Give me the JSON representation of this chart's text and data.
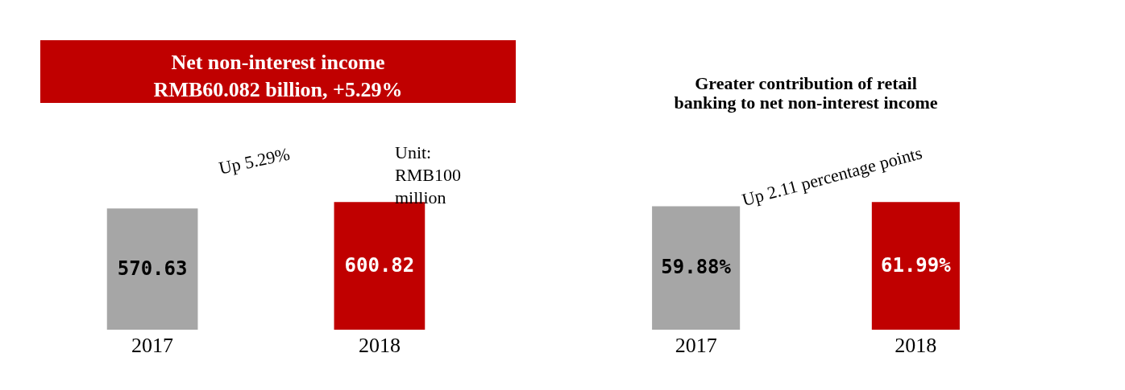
{
  "chart_data": [
    {
      "type": "bar",
      "title": "Net non-interest income\nRMB60.082 billion, +5.29%",
      "categories": [
        "2017",
        "2018"
      ],
      "values": [
        570.63,
        600.82
      ],
      "colors": [
        "#a6a6a6",
        "#c00000"
      ],
      "data_labels": true,
      "annotations": [
        "Up 5.29%",
        "Unit:\nRMB100\nmillion"
      ]
    },
    {
      "type": "bar",
      "title": "Greater contribution of retail\nbanking to net non-interest income",
      "categories": [
        "2017",
        "2018"
      ],
      "values": [
        59.88,
        61.99
      ],
      "colors": [
        "#a6a6a6",
        "#c00000"
      ],
      "value_labels": [
        "59.88%",
        "61.99%"
      ],
      "annotations": [
        "Up 2.11 percentage points"
      ]
    }
  ]
}
